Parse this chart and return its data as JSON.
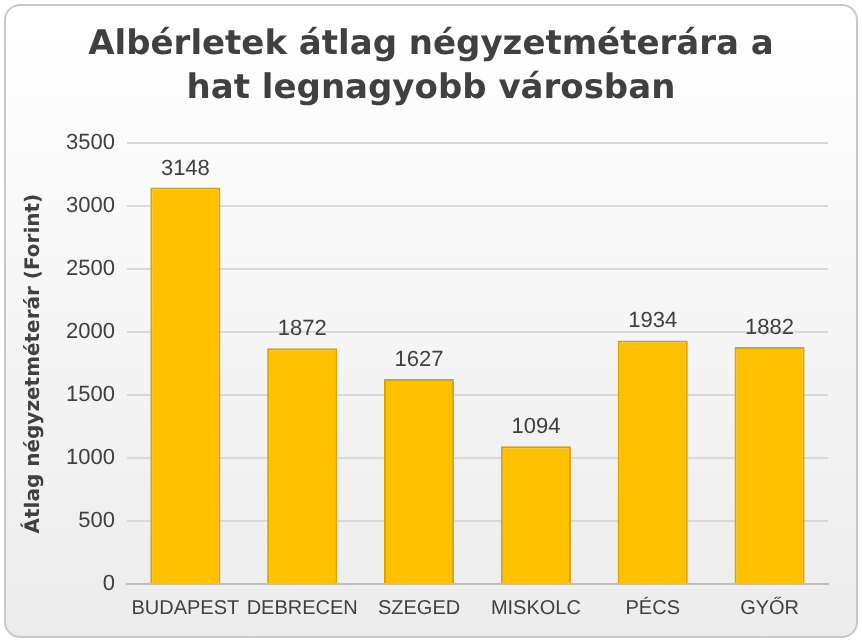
{
  "chart_data": {
    "type": "bar",
    "title": "Albérletek átlag négyzetméterára a hat legnagyobb városban",
    "ylabel": "Átlag négyzetméterár (Forint)",
    "categories": [
      "BUDAPEST",
      "DEBRECEN",
      "SZEGED",
      "MISKOLC",
      "PÉCS",
      "GYŐR"
    ],
    "values": [
      3148,
      1872,
      1627,
      1094,
      1934,
      1882
    ],
    "color": "#ffc000",
    "ylim": [
      0,
      3500
    ],
    "yticks": [
      0,
      500,
      1000,
      1500,
      2000,
      2500,
      3000,
      3500
    ],
    "grid": "y",
    "data_labels": true,
    "legend": false
  }
}
